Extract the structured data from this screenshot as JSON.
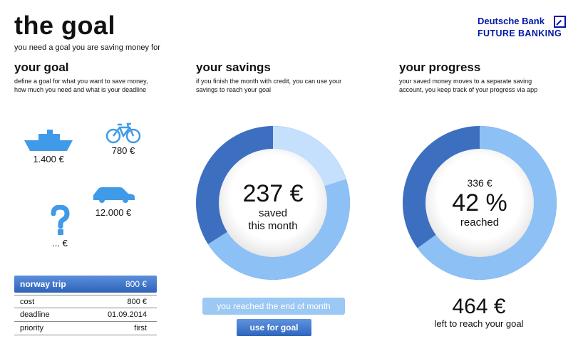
{
  "header": {
    "title": "the goal",
    "subtitle": "you need a goal you are saving money for"
  },
  "logo": {
    "name": "Deutsche Bank",
    "tagline": "FUTURE BANKING"
  },
  "goal": {
    "title": "your goal",
    "description_line1": "define a goal for what you want to save money,",
    "description_line2": "how much you need and what is your deadline",
    "options": [
      {
        "icon": "ship-icon",
        "amount": "1.400 €"
      },
      {
        "icon": "bicycle-icon",
        "amount": "780 €"
      },
      {
        "icon": "car-icon",
        "amount": "12.000 €"
      },
      {
        "icon": "question-mark-icon",
        "amount": "... €"
      }
    ],
    "selected": {
      "name": "norway trip",
      "value": "800 €"
    },
    "details": [
      {
        "label": "cost",
        "value": "800 €"
      },
      {
        "label": "deadline",
        "value": "01.09.2014"
      },
      {
        "label": "priority",
        "value": "first"
      }
    ]
  },
  "savings": {
    "title": "your savings",
    "description_line1": "if you finish the month with credit, you can use your",
    "description_line2": "savings to reach your goal",
    "amount": "237 €",
    "label_line1": "saved",
    "label_line2": "this month",
    "fraction": 0.63,
    "end_of_month_label": "you reached the end of month",
    "use_button_label": "use for goal"
  },
  "progress": {
    "title": "your progress",
    "description_line1": "your saved money moves to a separate saving",
    "description_line2": "account, you keep track of your progress via app",
    "saved": "336 €",
    "percent": "42 %",
    "percent_value": 0.42,
    "label": "reached",
    "left_amount": "464 €",
    "left_label": "left to reach your goal"
  },
  "colors": {
    "ring_dark": "#3d6fc0",
    "ring_light": "#8dc0f5",
    "ring_pale": "#c4e0fc",
    "icon_blue": "#3f9be8",
    "brand_blue": "#0018a8"
  }
}
